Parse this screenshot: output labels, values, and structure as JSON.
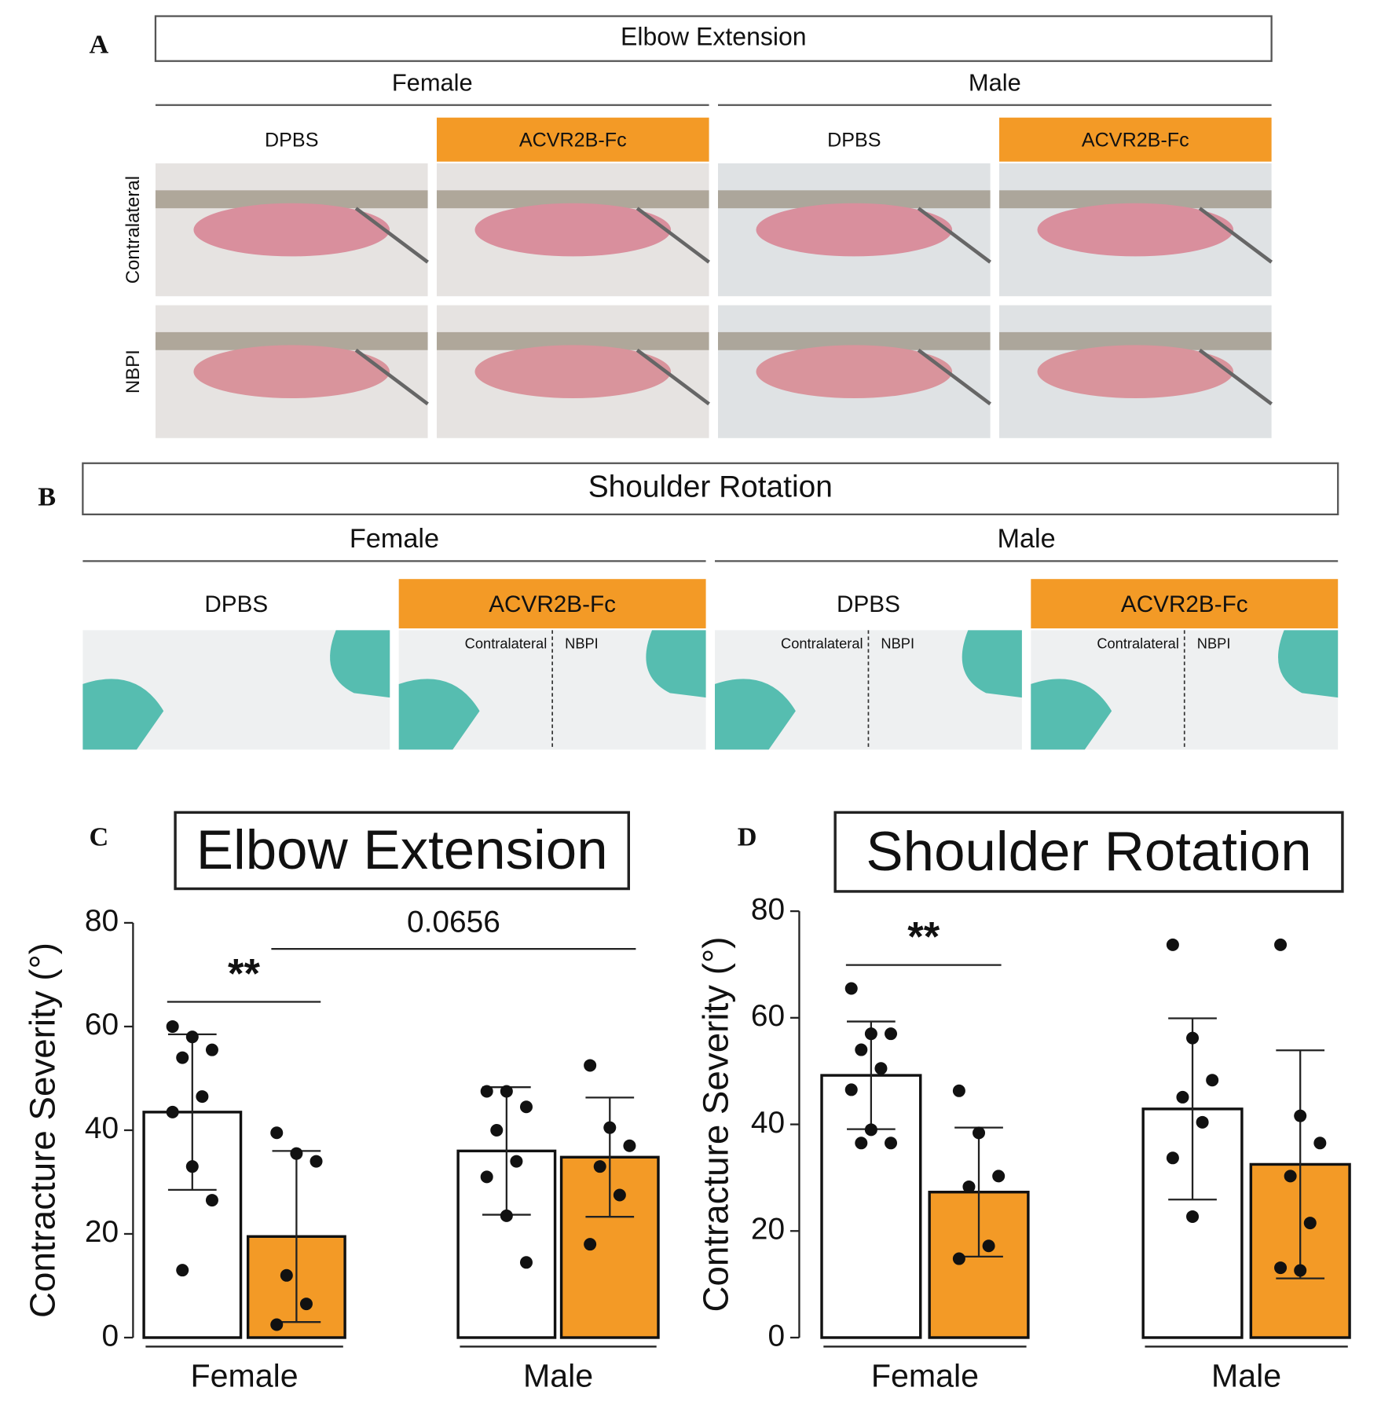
{
  "panel_a": {
    "letter": "A",
    "title": "Elbow Extension",
    "groups": [
      "Female",
      "Male"
    ],
    "conditions": [
      "DPBS",
      "ACVR2B-Fc",
      "DPBS",
      "ACVR2B-Fc"
    ],
    "rows": [
      "Contralateral",
      "NBPI"
    ]
  },
  "panel_b": {
    "letter": "B",
    "title": "Shoulder Rotation",
    "groups": [
      "Female",
      "Male"
    ],
    "conditions": [
      "DPBS",
      "ACVR2B-Fc",
      "DPBS",
      "ACVR2B-Fc"
    ],
    "photo_labels": [
      [
        "Contralateral",
        "NBPI"
      ],
      [
        "Contralateral",
        "NBPI"
      ],
      [
        "Contralateral",
        "NBPI"
      ]
    ]
  },
  "chart_data": [
    {
      "type": "bar",
      "label": "C",
      "title": "Elbow Extension",
      "y_label": "Contracture Severity (°)",
      "categories": [
        "Female",
        "Male"
      ],
      "ylim": [
        0,
        80
      ],
      "yticks": [
        0,
        20,
        40,
        60,
        80
      ],
      "annotations": [
        "**",
        "0.0656"
      ],
      "series": [
        {
          "color": "#ffffff",
          "values": [
            43.5,
            36
          ],
          "errors": [
            15,
            12.3
          ],
          "points": [
            [
              60,
              58,
              55.5,
              54,
              46.5,
              43.5,
              33,
              26.5,
              13
            ],
            [
              47.5,
              47.5,
              44.5,
              40,
              34,
              31,
              23.5,
              14.5
            ]
          ]
        },
        {
          "color": "#f39a26",
          "values": [
            19.5,
            34.8
          ],
          "errors": [
            16.5,
            11.5
          ],
          "points": [
            [
              39.5,
              35.5,
              34,
              12,
              6.5,
              2.5
            ],
            [
              52.5,
              40.5,
              37,
              33,
              27.5,
              18
            ]
          ]
        }
      ]
    },
    {
      "type": "bar",
      "label": "D",
      "title": "Shoulder Rotation",
      "y_label": "Contracture Severity (°)",
      "categories": [
        "Female",
        "Male"
      ],
      "ylim": [
        0,
        80
      ],
      "yticks": [
        0,
        20,
        40,
        60,
        80
      ],
      "annotations": [
        "**"
      ],
      "series": [
        {
          "color": "#ffffff",
          "values": [
            49.2,
            42.9
          ],
          "errors": [
            10.1,
            17
          ],
          "points": [
            [
              65.5,
              57,
              57,
              54,
              50.5,
              46.5,
              39,
              36.5,
              36.5
            ],
            [
              73.7,
              56.2,
              48.3,
              45.1,
              40.4,
              33.7,
              22.7
            ]
          ]
        },
        {
          "color": "#f39a26",
          "values": [
            27.3,
            32.5
          ],
          "errors": [
            12.1,
            21.4
          ],
          "points": [
            [
              46.3,
              38.4,
              30.3,
              28.3,
              17.2,
              14.8
            ],
            [
              73.7,
              41.6,
              36.5,
              30.3,
              21.5,
              13.1,
              12.6
            ]
          ]
        }
      ]
    }
  ]
}
